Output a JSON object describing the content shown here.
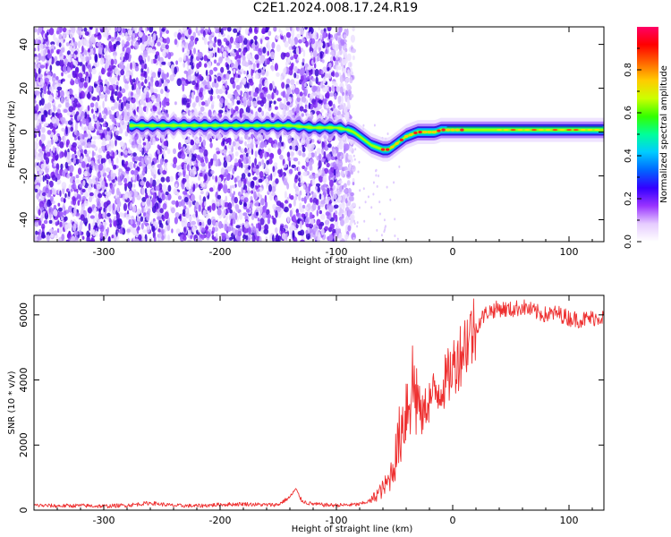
{
  "figure": {
    "title": "C2E1.2024.008.17.24.R19"
  },
  "chart_data": [
    {
      "type": "heatmap",
      "title": "",
      "xlabel": "Height of straight line (km)",
      "ylabel": "Frequency (Hz)",
      "xlim": [
        -360,
        130
      ],
      "ylim": [
        -50,
        48
      ],
      "xticks": [
        -300,
        -200,
        -100,
        0,
        100
      ],
      "yticks": [
        -40,
        -20,
        0,
        20,
        40
      ],
      "noise_region": [
        -360,
        -85
      ],
      "signal_ridge": {
        "x": [
          -275,
          -270,
          -265,
          -220,
          -200,
          -180,
          -160,
          -140,
          -120,
          -100,
          -90,
          -85,
          -80,
          -75,
          -70,
          -65,
          -60,
          -55,
          -50,
          -45,
          -40,
          -35,
          -30,
          -25,
          -20,
          -15,
          -10,
          -5,
          0,
          20,
          40,
          60,
          80,
          100,
          130
        ],
        "y": [
          3,
          3,
          3,
          3,
          3,
          3,
          3,
          3,
          2,
          2,
          1,
          0,
          -2,
          -4,
          -6,
          -7,
          -8,
          -8,
          -6,
          -4,
          -2,
          -1,
          0,
          0,
          0,
          0,
          1,
          1,
          1,
          1,
          1,
          1,
          1,
          1,
          1
        ]
      },
      "colorbar": {
        "label": "Normalized spectral amplitude",
        "range": [
          0,
          1
        ],
        "ticks": [
          0.0,
          0.2,
          0.4,
          0.6,
          0.8
        ],
        "colors": [
          "#ffffff",
          "#e6ccff",
          "#9933ff",
          "#3300ff",
          "#0066ff",
          "#00ccff",
          "#00ff99",
          "#33ff00",
          "#ccff00",
          "#ffcc00",
          "#ff6600",
          "#ff0000",
          "#ff0066"
        ]
      },
      "grid": false
    },
    {
      "type": "line",
      "title": "",
      "xlabel": "Height of straight line (km)",
      "ylabel": "SNR (10 * v/v)",
      "xlim": [
        -360,
        130
      ],
      "ylim": [
        0,
        6600
      ],
      "xticks": [
        -300,
        -200,
        -100,
        0,
        100
      ],
      "yticks": [
        0,
        2000,
        4000,
        6000
      ],
      "series": [
        {
          "color": "#ee3030",
          "x": [
            -360,
            -340,
            -320,
            -300,
            -280,
            -260,
            -240,
            -220,
            -200,
            -180,
            -160,
            -150,
            -140,
            -135,
            -130,
            -125,
            -120,
            -110,
            -100,
            -90,
            -80,
            -70,
            -65,
            -60,
            -55,
            -50,
            -45,
            -40,
            -35,
            -30,
            -27,
            -25,
            -22,
            -20,
            -15,
            -10,
            -5,
            0,
            5,
            10,
            15,
            20,
            25,
            30,
            40,
            50,
            60,
            70,
            80,
            90,
            100,
            110,
            120,
            130
          ],
          "y": [
            150,
            130,
            140,
            120,
            150,
            220,
            140,
            130,
            170,
            190,
            160,
            170,
            400,
            650,
            300,
            220,
            190,
            160,
            150,
            160,
            180,
            300,
            500,
            650,
            900,
            1500,
            2400,
            3200,
            3900,
            3500,
            2800,
            3000,
            3300,
            3400,
            3600,
            3800,
            4000,
            4400,
            4700,
            5100,
            5400,
            5600,
            5900,
            6100,
            6200,
            6150,
            6250,
            6100,
            6000,
            6050,
            5900,
            5850,
            5900,
            5950
          ]
        }
      ],
      "grid": false
    }
  ]
}
